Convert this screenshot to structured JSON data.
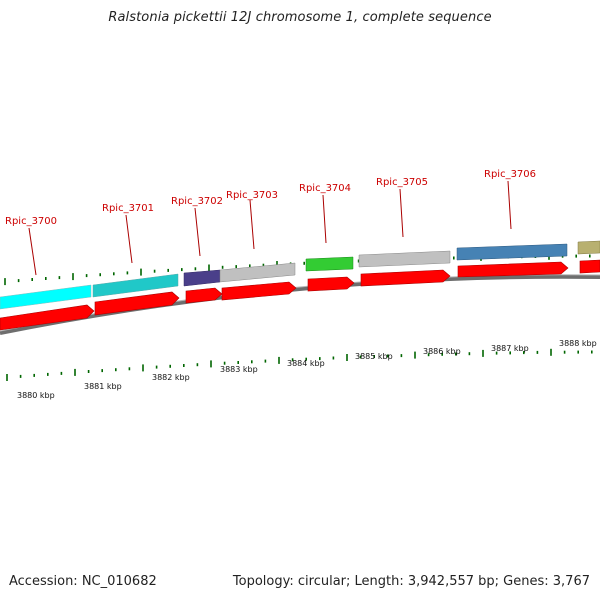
{
  "title": "Ralstonia pickettii 12J chromosome 1, complete sequence",
  "accession": "Accession: NC_010682",
  "summary": "Topology: circular; Length: 3,942,557 bp; Genes: 3,767",
  "gene_labels": [
    "Rpic_3700",
    "Rpic_3701",
    "Rpic_3702",
    "Rpic_3703",
    "Rpic_3704",
    "Rpic_3705",
    "Rpic_3706"
  ],
  "kbp_labels": [
    "3880 kbp",
    "3881 kbp",
    "3882 kbp",
    "3883 kbp",
    "3884 kbp",
    "3885 kbp",
    "3886 kbp",
    "3887 kbp",
    "3888 kbp"
  ],
  "colors": {
    "gene_label": "#cc0000",
    "cds_arrow": "#ff0000",
    "backbone": "#777777",
    "tick": "#006600"
  },
  "feature_colors": [
    "#00ffff",
    "#20c8c8",
    "#4a3f8a",
    "#c0c0c0",
    "#33cc33",
    "#c0c0c0",
    "#4682b4",
    "#b8b070"
  ]
}
